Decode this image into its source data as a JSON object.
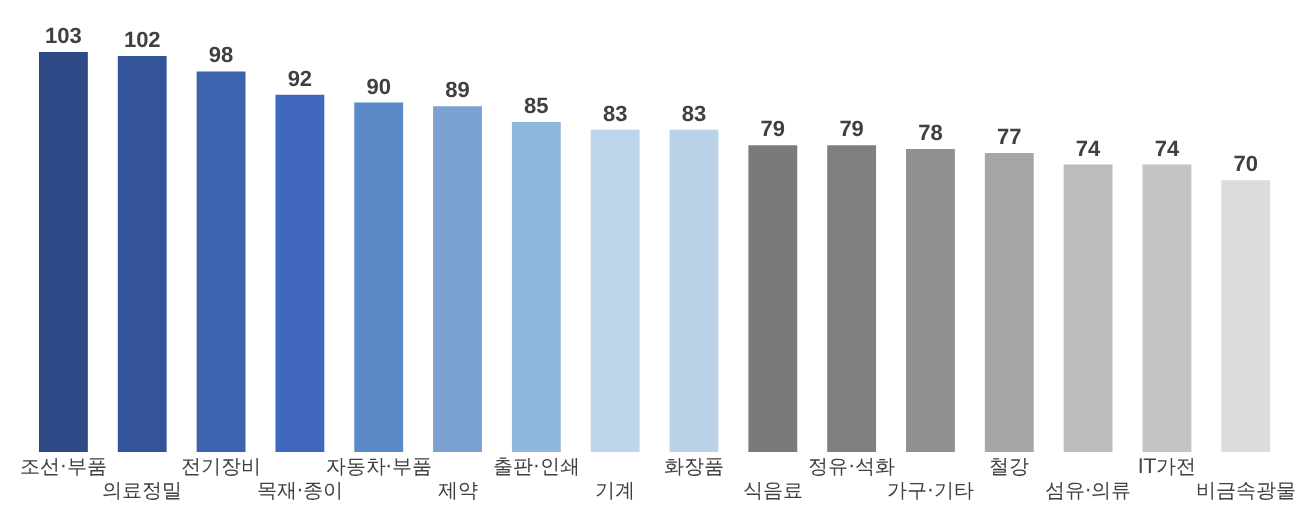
{
  "chart_data": {
    "type": "bar",
    "categories": [
      "조선·부품",
      "의료정밀",
      "전기장비",
      "목재·종이",
      "자동차·부품",
      "제약",
      "출판·인쇄",
      "기계",
      "화장품",
      "식음료",
      "정유·석화",
      "가구·기타",
      "철강",
      "섬유·의류",
      "IT가전",
      "비금속광물"
    ],
    "values": [
      103,
      102,
      98,
      92,
      90,
      89,
      85,
      83,
      83,
      79,
      79,
      78,
      77,
      74,
      74,
      70
    ],
    "colors": [
      "#2e4a86",
      "#34549a",
      "#3d63ae",
      "#4168bf",
      "#5a8ac8",
      "#7ba1d2",
      "#8fb6dc",
      "#bcd5ea",
      "#b9d2e8",
      "#7a7a7a",
      "#7f7f7f",
      "#909090",
      "#a6a6a6",
      "#bcbcbc",
      "#c4c4c4",
      "#dcdcdc"
    ],
    "data_labels": true,
    "grid": false,
    "legend": false
  }
}
